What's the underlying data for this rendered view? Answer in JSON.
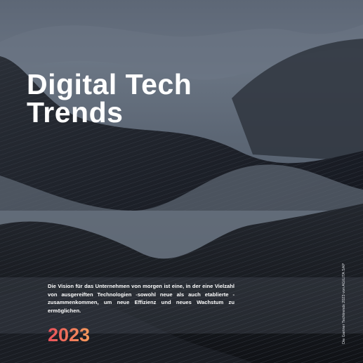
{
  "title": {
    "lines": [
      "Digital Tech",
      "Trends"
    ]
  },
  "body": "Die Vision für das Unternehmen von morgen ist eine, in der eine Vielzahl von ausgereiften Technologien -sowohl neue als auch etablierte - zusammenkommen, um neue Effizienz und neues Wachstum zu ermöglichen.",
  "year": "2023",
  "side_note": "Die Gartner Techtrends 2023 von AGILITA SAP"
}
